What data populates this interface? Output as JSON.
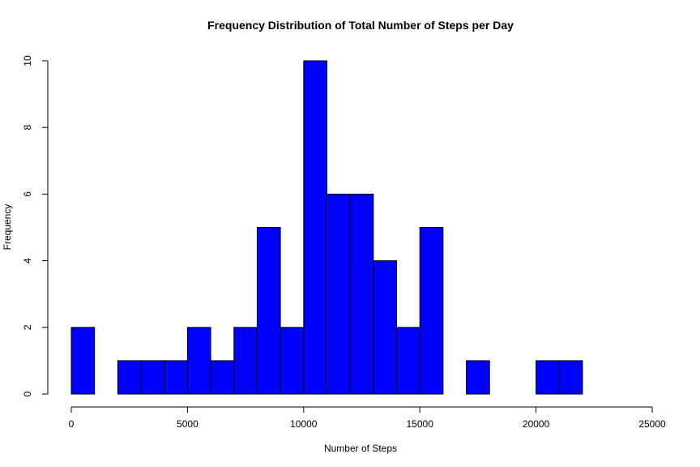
{
  "chart_data": {
    "type": "bar",
    "title": "Frequency Distribution of Total Number of Steps per Day",
    "xlabel": "Number of Steps",
    "ylabel": "Frequency",
    "bar_color": "#0000ff",
    "bin_width": 1000,
    "xlim": [
      0,
      25000
    ],
    "ylim": [
      0,
      10
    ],
    "x_ticks": [
      0,
      5000,
      10000,
      15000,
      20000,
      25000
    ],
    "y_ticks": [
      0,
      2,
      4,
      6,
      8,
      10
    ],
    "bin_starts": [
      0,
      1000,
      2000,
      3000,
      4000,
      5000,
      6000,
      7000,
      8000,
      9000,
      10000,
      11000,
      12000,
      13000,
      14000,
      15000,
      16000,
      17000,
      18000,
      19000,
      20000,
      21000
    ],
    "values": [
      2,
      0,
      1,
      1,
      1,
      2,
      1,
      2,
      5,
      2,
      10,
      6,
      6,
      4,
      2,
      5,
      0,
      1,
      0,
      0,
      1,
      1
    ],
    "grid": false
  }
}
